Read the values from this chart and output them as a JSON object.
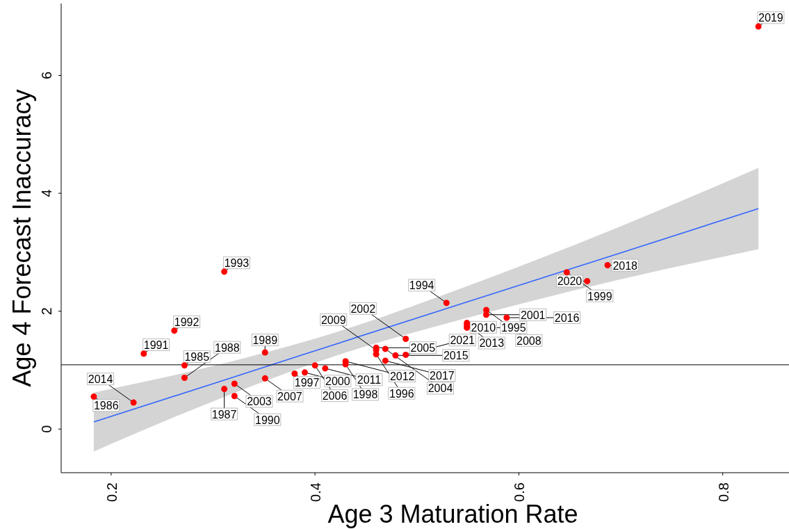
{
  "chart_data": {
    "type": "scatter",
    "xlabel": "Age 3 Maturation Rate",
    "ylabel": "Age 4 Forecast Inaccuracy",
    "xlim": [
      0.151,
      0.865
    ],
    "ylim": [
      -0.74,
      7.22
    ],
    "xticks": [
      0.2,
      0.4,
      0.6,
      0.8
    ],
    "yticks": [
      0,
      2,
      4,
      6
    ],
    "grid": false,
    "series": [
      {
        "type": "scatter",
        "marker": "circle",
        "color": "#ff0000",
        "x": [
          0.183,
          0.222,
          0.232,
          0.262,
          0.272,
          0.272,
          0.311,
          0.321,
          0.311,
          0.321,
          0.351,
          0.351,
          0.38,
          0.39,
          0.4,
          0.41,
          0.43,
          0.43,
          0.46,
          0.46,
          0.46,
          0.469,
          0.469,
          0.479,
          0.489,
          0.489,
          0.529,
          0.549,
          0.549,
          0.549,
          0.568,
          0.568,
          0.588,
          0.647,
          0.667,
          0.687,
          0.835
        ],
        "values": [
          0.55,
          0.45,
          1.28,
          1.67,
          1.08,
          0.87,
          2.67,
          0.77,
          0.68,
          0.56,
          1.3,
          0.86,
          0.94,
          0.96,
          1.08,
          1.03,
          1.15,
          1.1,
          1.38,
          1.34,
          1.27,
          1.36,
          1.16,
          1.25,
          1.26,
          1.53,
          2.14,
          1.8,
          1.76,
          1.72,
          2.02,
          1.94,
          1.89,
          2.66,
          2.51,
          2.78,
          6.83
        ]
      },
      {
        "type": "line",
        "color": "#3366ff",
        "x": [
          0.183,
          0.3,
          0.42,
          0.55,
          0.7,
          0.835
        ],
        "values": [
          0.12,
          0.77,
          1.44,
          2.16,
          2.99,
          3.74
        ],
        "lower": [
          -0.38,
          0.47,
          1.24,
          1.89,
          2.54,
          3.05
        ],
        "upper": [
          0.62,
          1.07,
          1.64,
          2.43,
          3.44,
          4.43
        ]
      }
    ],
    "ref_lines": [
      {
        "axis": "y",
        "value": 1.09,
        "color": "#000000"
      }
    ],
    "annotations": [
      {
        "text": "1986",
        "x": 0.183,
        "y": 0.55
      },
      {
        "text": "2014",
        "x": 0.222,
        "y": 0.45
      },
      {
        "text": "1991",
        "x": 0.232,
        "y": 1.28
      },
      {
        "text": "1992",
        "x": 0.262,
        "y": 1.67
      },
      {
        "text": "1985",
        "x": 0.272,
        "y": 1.08
      },
      {
        "text": "1988",
        "x": 0.272,
        "y": 0.87
      },
      {
        "text": "1993",
        "x": 0.311,
        "y": 2.67
      },
      {
        "text": "2003",
        "x": 0.321,
        "y": 0.77
      },
      {
        "text": "1987",
        "x": 0.311,
        "y": 0.68
      },
      {
        "text": "1990",
        "x": 0.321,
        "y": 0.56
      },
      {
        "text": "1989",
        "x": 0.351,
        "y": 1.3
      },
      {
        "text": "2007",
        "x": 0.351,
        "y": 0.86
      },
      {
        "text": "1997",
        "x": 0.38,
        "y": 0.94
      },
      {
        "text": "2000",
        "x": 0.39,
        "y": 0.96
      },
      {
        "text": "2006",
        "x": 0.4,
        "y": 1.08
      },
      {
        "text": "2011",
        "x": 0.41,
        "y": 1.03
      },
      {
        "text": "2012",
        "x": 0.43,
        "y": 1.15
      },
      {
        "text": "1998",
        "x": 0.43,
        "y": 1.1
      },
      {
        "text": "2005",
        "x": 0.46,
        "y": 1.38
      },
      {
        "text": "2009",
        "x": 0.46,
        "y": 1.34
      },
      {
        "text": "1996",
        "x": 0.46,
        "y": 1.27
      },
      {
        "text": "2004",
        "x": 0.469,
        "y": 1.36
      },
      {
        "text": "2017",
        "x": 0.469,
        "y": 1.16
      },
      {
        "text": "2015",
        "x": 0.479,
        "y": 1.25
      },
      {
        "text": "2021",
        "x": 0.489,
        "y": 1.26
      },
      {
        "text": "2002",
        "x": 0.489,
        "y": 1.53
      },
      {
        "text": "1994",
        "x": 0.529,
        "y": 2.14
      },
      {
        "text": "2010",
        "x": 0.549,
        "y": 1.8
      },
      {
        "text": "2013",
        "x": 0.549,
        "y": 1.76
      },
      {
        "text": "1995",
        "x": 0.549,
        "y": 1.72
      },
      {
        "text": "2008",
        "x": 0.568,
        "y": 2.02
      },
      {
        "text": "2001",
        "x": 0.568,
        "y": 1.94
      },
      {
        "text": "2016",
        "x": 0.588,
        "y": 1.89
      },
      {
        "text": "1999",
        "x": 0.647,
        "y": 2.66
      },
      {
        "text": "2020",
        "x": 0.667,
        "y": 2.51
      },
      {
        "text": "2018",
        "x": 0.687,
        "y": 2.78
      },
      {
        "text": "2019",
        "x": 0.835,
        "y": 6.83
      }
    ]
  }
}
